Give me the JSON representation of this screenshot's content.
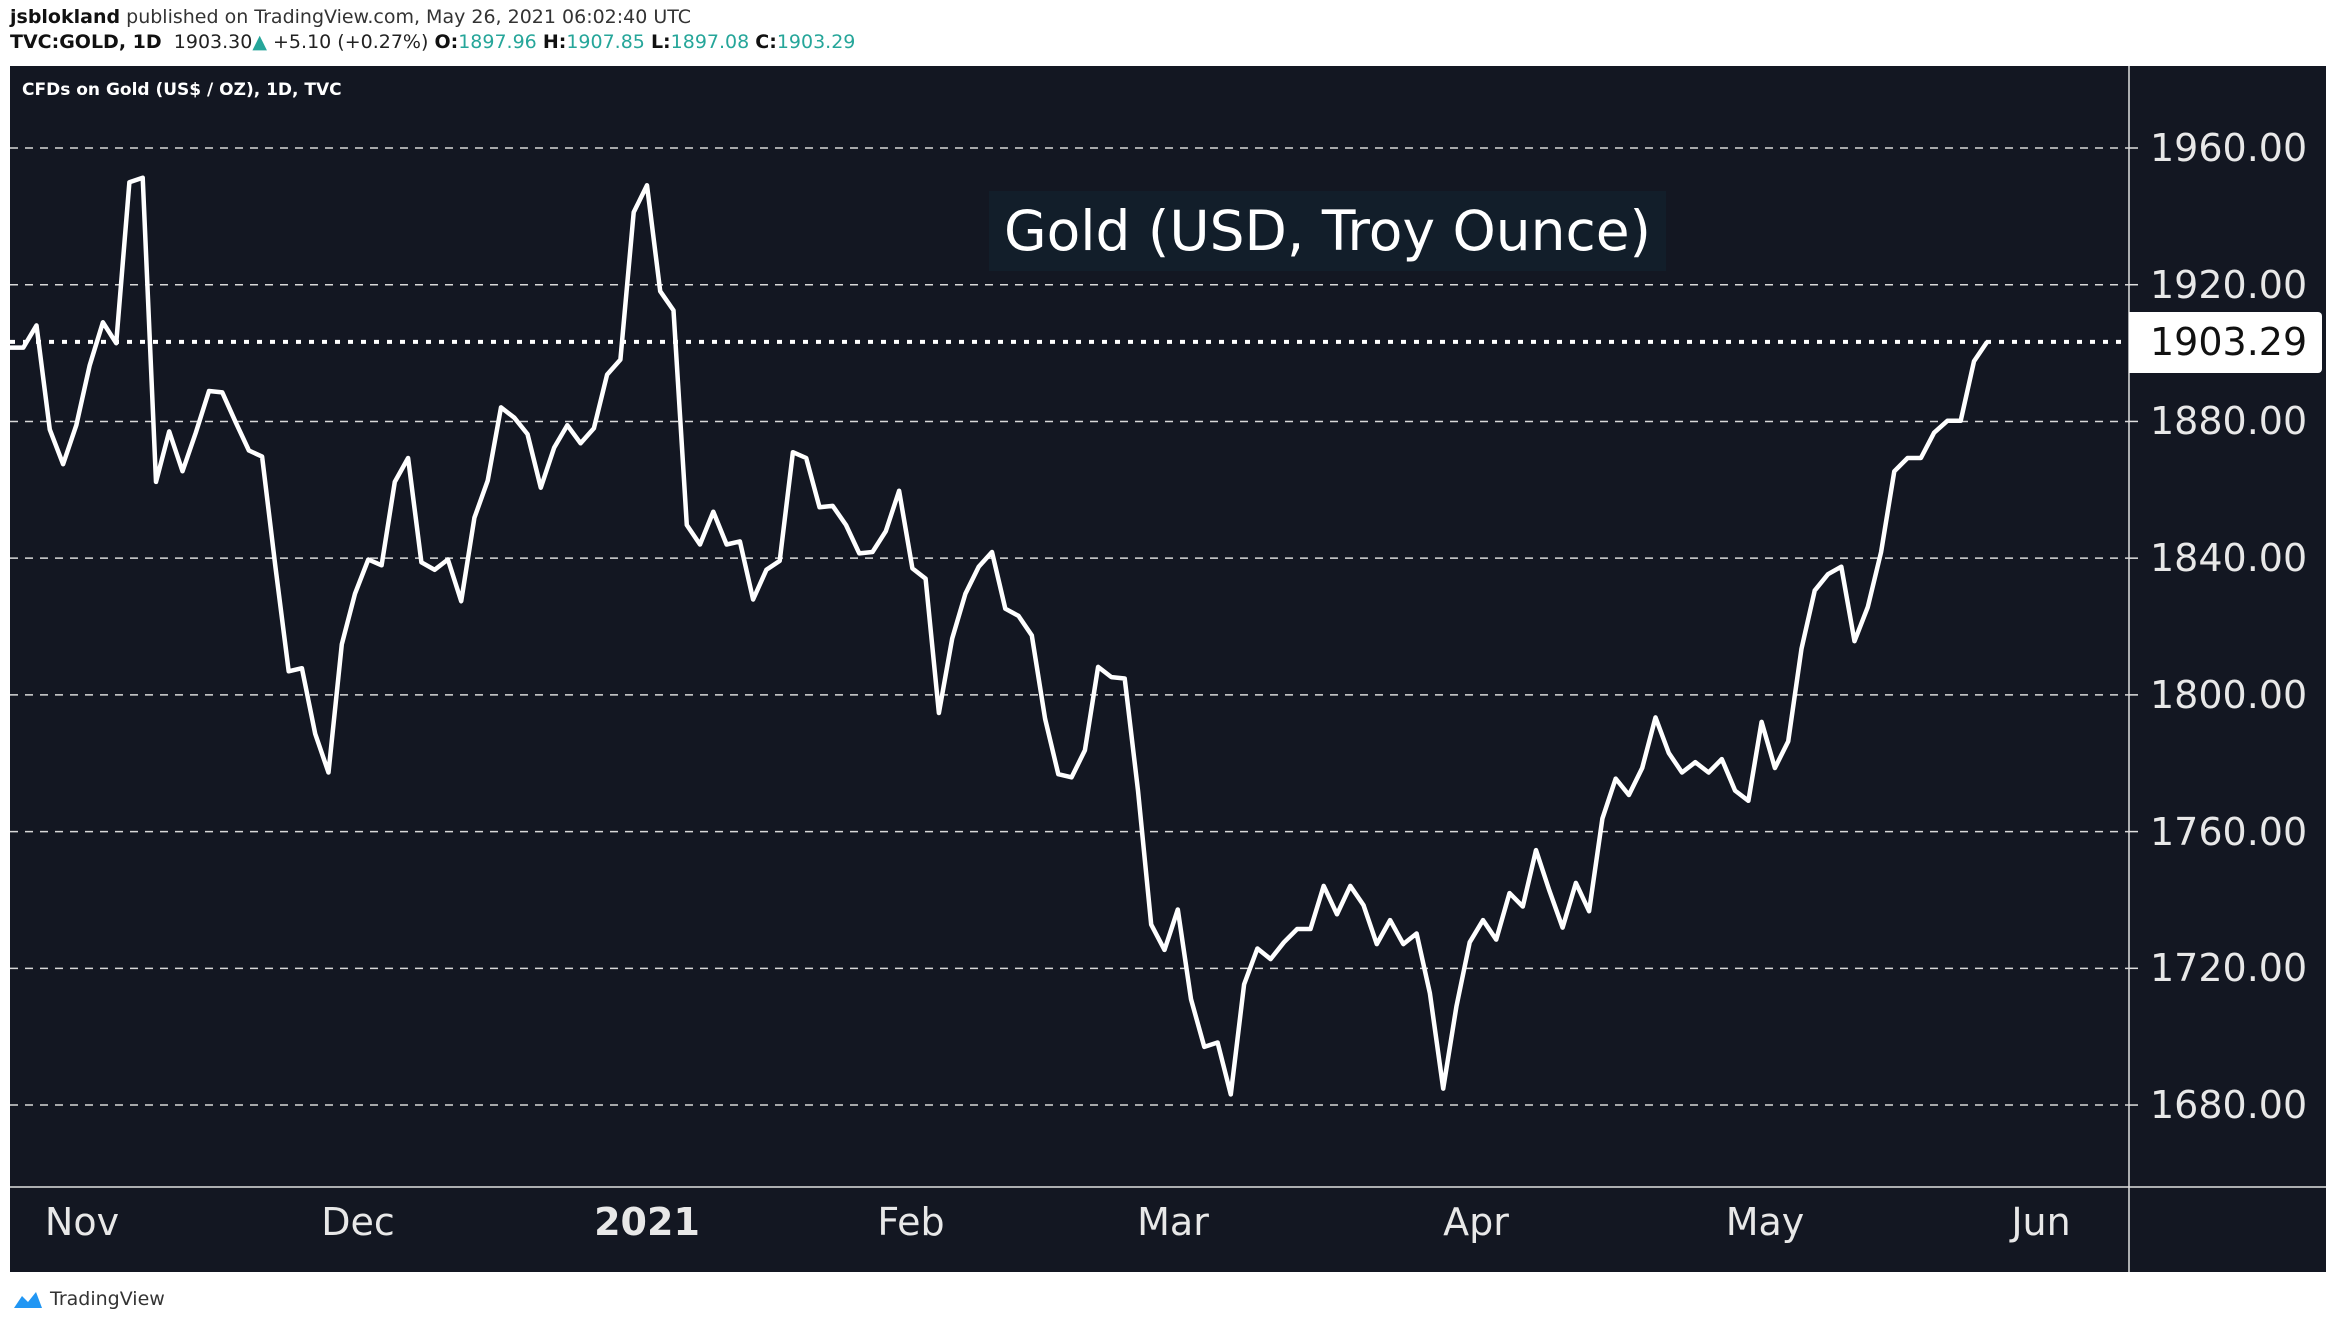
{
  "header": {
    "author": "jsblokland",
    "published_text": "published on TradingView.com, May 26, 2021 06:02:40 UTC",
    "symbol": "TVC:GOLD, 1D",
    "last": "1903.30",
    "change": "+5.10 (+0.27%)",
    "o_label": "O:",
    "o": "1897.96",
    "h_label": "H:",
    "h": "1907.85",
    "l_label": "L:",
    "l": "1897.08",
    "c_label": "C:",
    "c": "1903.29",
    "up_color": "#26a69a",
    "arrow_icon": "triangle-up-icon"
  },
  "chart_subtitle": "CFDs on Gold (US$ / OZ), 1D, TVC",
  "footer": {
    "brand": "TradingView",
    "logo_icon": "tradingview-cloud-icon"
  },
  "chart_data": {
    "type": "line",
    "title": "Gold (USD, Troy Ounce)",
    "background": "#131722",
    "line_color": "#ffffff",
    "ylim": [
      1655,
      1990
    ],
    "grid": "horizontal dashed",
    "y_ticks": [
      "1960.00",
      "1920.00",
      "1880.00",
      "1840.00",
      "1800.00",
      "1760.00",
      "1720.00",
      "1680.00"
    ],
    "x_ticks": [
      "Nov",
      "Dec",
      "2021",
      "Feb",
      "Mar",
      "Apr",
      "May",
      "Jun"
    ],
    "last_value_label": "1903.29",
    "last_value": 1903.29,
    "dates": [
      "2020-10-26",
      "2020-10-27",
      "2020-10-28",
      "2020-10-29",
      "2020-10-30",
      "2020-11-02",
      "2020-11-03",
      "2020-11-04",
      "2020-11-05",
      "2020-11-06",
      "2020-11-09",
      "2020-11-10",
      "2020-11-11",
      "2020-11-12",
      "2020-11-13",
      "2020-11-16",
      "2020-11-17",
      "2020-11-18",
      "2020-11-19",
      "2020-11-20",
      "2020-11-23",
      "2020-11-24",
      "2020-11-25",
      "2020-11-26",
      "2020-11-27",
      "2020-11-30",
      "2020-12-01",
      "2020-12-02",
      "2020-12-03",
      "2020-12-04",
      "2020-12-07",
      "2020-12-08",
      "2020-12-09",
      "2020-12-10",
      "2020-12-11",
      "2020-12-14",
      "2020-12-15",
      "2020-12-16",
      "2020-12-17",
      "2020-12-18",
      "2020-12-21",
      "2020-12-22",
      "2020-12-23",
      "2020-12-24",
      "2020-12-28",
      "2020-12-29",
      "2020-12-30",
      "2020-12-31",
      "2021-01-04",
      "2021-01-05",
      "2021-01-06",
      "2021-01-07",
      "2021-01-08",
      "2021-01-11",
      "2021-01-12",
      "2021-01-13",
      "2021-01-14",
      "2021-01-15",
      "2021-01-18",
      "2021-01-19",
      "2021-01-20",
      "2021-01-21",
      "2021-01-22",
      "2021-01-25",
      "2021-01-26",
      "2021-01-27",
      "2021-01-28",
      "2021-01-29",
      "2021-02-01",
      "2021-02-02",
      "2021-02-03",
      "2021-02-04",
      "2021-02-05",
      "2021-02-08",
      "2021-02-09",
      "2021-02-10",
      "2021-02-11",
      "2021-02-12",
      "2021-02-15",
      "2021-02-16",
      "2021-02-17",
      "2021-02-18",
      "2021-02-19",
      "2021-02-22",
      "2021-02-23",
      "2021-02-24",
      "2021-02-25",
      "2021-02-26",
      "2021-03-01",
      "2021-03-02",
      "2021-03-03",
      "2021-03-04",
      "2021-03-05",
      "2021-03-08",
      "2021-03-09",
      "2021-03-10",
      "2021-03-11",
      "2021-03-12",
      "2021-03-15",
      "2021-03-16",
      "2021-03-17",
      "2021-03-18",
      "2021-03-19",
      "2021-03-22",
      "2021-03-23",
      "2021-03-24",
      "2021-03-25",
      "2021-03-26",
      "2021-03-29",
      "2021-03-30",
      "2021-03-31",
      "2021-04-01",
      "2021-04-02",
      "2021-04-05",
      "2021-04-06",
      "2021-04-07",
      "2021-04-08",
      "2021-04-09",
      "2021-04-12",
      "2021-04-13",
      "2021-04-14",
      "2021-04-15",
      "2021-04-16",
      "2021-04-19",
      "2021-04-20",
      "2021-04-21",
      "2021-04-22",
      "2021-04-23",
      "2021-04-26",
      "2021-04-27",
      "2021-04-28",
      "2021-04-29",
      "2021-04-30",
      "2021-05-03",
      "2021-05-04",
      "2021-05-05",
      "2021-05-06",
      "2021-05-07",
      "2021-05-10",
      "2021-05-11",
      "2021-05-12",
      "2021-05-13",
      "2021-05-14",
      "2021-05-17",
      "2021-05-18",
      "2021-05-19",
      "2021-05-20",
      "2021-05-21",
      "2021-05-24",
      "2021-05-25"
    ],
    "values": [
      1901.6,
      1901.6,
      1908.1,
      1877.6,
      1867.5,
      1878.9,
      1896.3,
      1909.0,
      1902.9,
      1950.0,
      1951.3,
      1862.3,
      1877.1,
      1865.4,
      1876.7,
      1888.9,
      1888.5,
      1879.8,
      1871.5,
      1869.7,
      1837.5,
      1806.9,
      1807.8,
      1788.6,
      1777.3,
      1814.8,
      1829.6,
      1839.6,
      1837.9,
      1862.3,
      1869.3,
      1838.8,
      1836.6,
      1839.6,
      1827.4,
      1851.8,
      1862.7,
      1884.1,
      1881.1,
      1876.3,
      1860.6,
      1872.3,
      1878.9,
      1873.6,
      1878.0,
      1893.7,
      1898.1,
      1941.2,
      1949.1,
      1918.1,
      1912.5,
      1849.7,
      1844.0,
      1853.6,
      1844.0,
      1844.9,
      1827.9,
      1836.6,
      1839.2,
      1871.0,
      1869.3,
      1854.9,
      1855.3,
      1849.7,
      1841.4,
      1841.8,
      1847.9,
      1859.7,
      1837.0,
      1834.0,
      1794.7,
      1816.5,
      1829.6,
      1837.5,
      1841.8,
      1825.2,
      1823.1,
      1817.4,
      1793.0,
      1776.8,
      1775.9,
      1783.8,
      1808.2,
      1805.2,
      1804.8,
      1772.0,
      1732.8,
      1725.4,
      1737.2,
      1711.0,
      1697.0,
      1698.3,
      1683.1,
      1715.3,
      1725.8,
      1722.7,
      1727.6,
      1731.5,
      1731.5,
      1744.1,
      1735.8,
      1744.1,
      1738.5,
      1727.1,
      1734.1,
      1727.1,
      1730.2,
      1712.7,
      1684.8,
      1708.8,
      1727.6,
      1734.1,
      1728.4,
      1742.0,
      1738.1,
      1754.6,
      1742.8,
      1731.9,
      1745.0,
      1736.7,
      1763.8,
      1775.5,
      1770.7,
      1778.6,
      1793.4,
      1783.0,
      1777.3,
      1780.3,
      1777.3,
      1781.2,
      1772.0,
      1769.0,
      1792.1,
      1778.6,
      1786.4,
      1813.5,
      1830.5,
      1835.3,
      1837.5,
      1815.7,
      1825.7,
      1841.8,
      1865.4,
      1869.3,
      1869.3,
      1876.7,
      1880.2,
      1880.2,
      1897.6,
      1903.29
    ]
  }
}
